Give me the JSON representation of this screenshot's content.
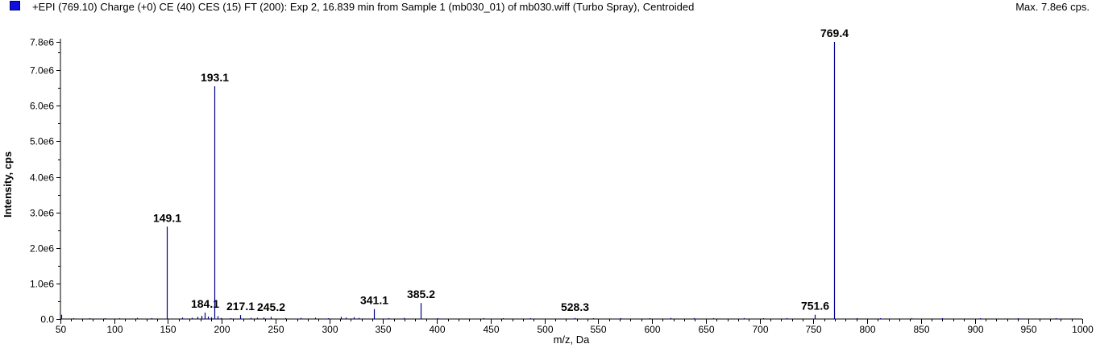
{
  "header": {
    "legend_color": "#1010dd",
    "title": "+EPI (769.10) Charge (+0) CE (40) CES (15) FT (200): Exp 2, 16.839 min from Sample 1 (mb030_01) of mb030.wiff (Turbo Spray), Centroided",
    "max_label": "Max. 7.8e6 cps."
  },
  "chart_data": {
    "type": "bar",
    "xlabel": "m/z, Da",
    "ylabel": "Intensity, cps",
    "xlim": [
      50,
      1000
    ],
    "ylim": [
      0,
      7800000.0
    ],
    "x_ticks": [
      50,
      100,
      150,
      200,
      250,
      300,
      350,
      400,
      450,
      500,
      550,
      600,
      650,
      700,
      750,
      800,
      850,
      900,
      950,
      1000
    ],
    "x_tick_labels": [
      "50",
      "100",
      "150",
      "200",
      "250",
      "300",
      "350",
      "400",
      "450",
      "500",
      "550",
      "600",
      "650",
      "700",
      "750",
      "800",
      "850",
      "900",
      "950",
      "1000"
    ],
    "y_ticks": [
      0,
      1000000,
      2000000,
      3000000,
      4000000,
      5000000,
      6000000,
      7000000,
      7800000
    ],
    "y_tick_labels": [
      "0.0",
      "1.0e6",
      "2.0e6",
      "3.0e6",
      "4.0e6",
      "5.0e6",
      "6.0e6",
      "7.0e6",
      "7.8e6"
    ],
    "line_color": "#00008b",
    "peaks": [
      {
        "mz": 51.0,
        "intensity": 120000
      },
      {
        "mz": 62.0,
        "intensity": 15000
      },
      {
        "mz": 77.0,
        "intensity": 20000
      },
      {
        "mz": 91.0,
        "intensity": 18000
      },
      {
        "mz": 105.0,
        "intensity": 15000
      },
      {
        "mz": 121.0,
        "intensity": 30000
      },
      {
        "mz": 135.0,
        "intensity": 25000
      },
      {
        "mz": 149.1,
        "intensity": 2600000,
        "label": "149.1"
      },
      {
        "mz": 163.0,
        "intensity": 40000
      },
      {
        "mz": 172.0,
        "intensity": 35000
      },
      {
        "mz": 177.0,
        "intensity": 60000
      },
      {
        "mz": 181.0,
        "intensity": 90000
      },
      {
        "mz": 184.1,
        "intensity": 180000,
        "label": "184.1"
      },
      {
        "mz": 187.0,
        "intensity": 70000
      },
      {
        "mz": 190.0,
        "intensity": 50000
      },
      {
        "mz": 193.1,
        "intensity": 6550000,
        "label": "193.1"
      },
      {
        "mz": 196.0,
        "intensity": 80000
      },
      {
        "mz": 199.0,
        "intensity": 30000
      },
      {
        "mz": 208.0,
        "intensity": 25000
      },
      {
        "mz": 217.1,
        "intensity": 110000,
        "label": "217.1"
      },
      {
        "mz": 227.0,
        "intensity": 30000
      },
      {
        "mz": 233.0,
        "intensity": 35000
      },
      {
        "mz": 239.0,
        "intensity": 40000
      },
      {
        "mz": 245.2,
        "intensity": 60000,
        "label": "245.2"
      },
      {
        "mz": 259.0,
        "intensity": 25000
      },
      {
        "mz": 273.0,
        "intensity": 30000
      },
      {
        "mz": 287.0,
        "intensity": 35000
      },
      {
        "mz": 299.0,
        "intensity": 20000
      },
      {
        "mz": 311.0,
        "intensity": 60000
      },
      {
        "mz": 315.0,
        "intensity": 40000
      },
      {
        "mz": 323.0,
        "intensity": 50000
      },
      {
        "mz": 327.0,
        "intensity": 30000
      },
      {
        "mz": 341.1,
        "intensity": 280000,
        "label": "341.1"
      },
      {
        "mz": 355.0,
        "intensity": 25000
      },
      {
        "mz": 369.0,
        "intensity": 30000
      },
      {
        "mz": 385.2,
        "intensity": 450000,
        "label": "385.2"
      },
      {
        "mz": 401.0,
        "intensity": 20000
      },
      {
        "mz": 443.0,
        "intensity": 25000
      },
      {
        "mz": 461.0,
        "intensity": 20000
      },
      {
        "mz": 487.0,
        "intensity": 20000
      },
      {
        "mz": 528.3,
        "intensity": 30000,
        "label": "528.3"
      },
      {
        "mz": 545.0,
        "intensity": 20000
      },
      {
        "mz": 571.0,
        "intensity": 25000
      },
      {
        "mz": 598.0,
        "intensity": 20000
      },
      {
        "mz": 617.0,
        "intensity": 30000
      },
      {
        "mz": 639.0,
        "intensity": 25000
      },
      {
        "mz": 657.0,
        "intensity": 20000
      },
      {
        "mz": 685.0,
        "intensity": 25000
      },
      {
        "mz": 703.0,
        "intensity": 20000
      },
      {
        "mz": 725.0,
        "intensity": 25000
      },
      {
        "mz": 751.6,
        "intensity": 120000,
        "label": "751.6"
      },
      {
        "mz": 769.4,
        "intensity": 7800000,
        "label": "769.4"
      },
      {
        "mz": 790.0,
        "intensity": 15000
      },
      {
        "mz": 812.0,
        "intensity": 15000
      },
      {
        "mz": 841.0,
        "intensity": 12000
      },
      {
        "mz": 870.0,
        "intensity": 12000
      },
      {
        "mz": 905.0,
        "intensity": 10000
      },
      {
        "mz": 940.0,
        "intensity": 10000
      },
      {
        "mz": 975.0,
        "intensity": 10000
      }
    ]
  }
}
